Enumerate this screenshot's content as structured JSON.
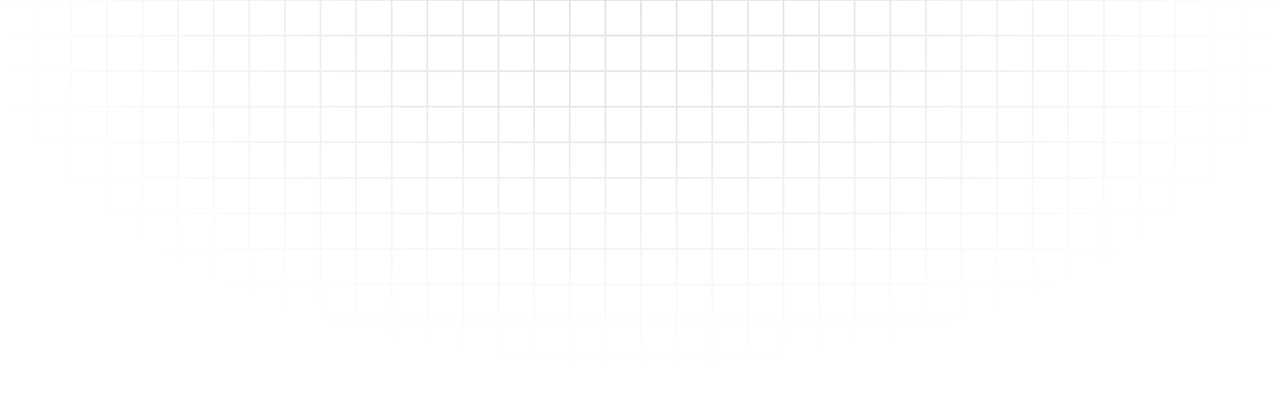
{
  "background": {
    "pattern": "square-grid",
    "base_color": "#ffffff",
    "line_color": "#e4e4e7"
  }
}
